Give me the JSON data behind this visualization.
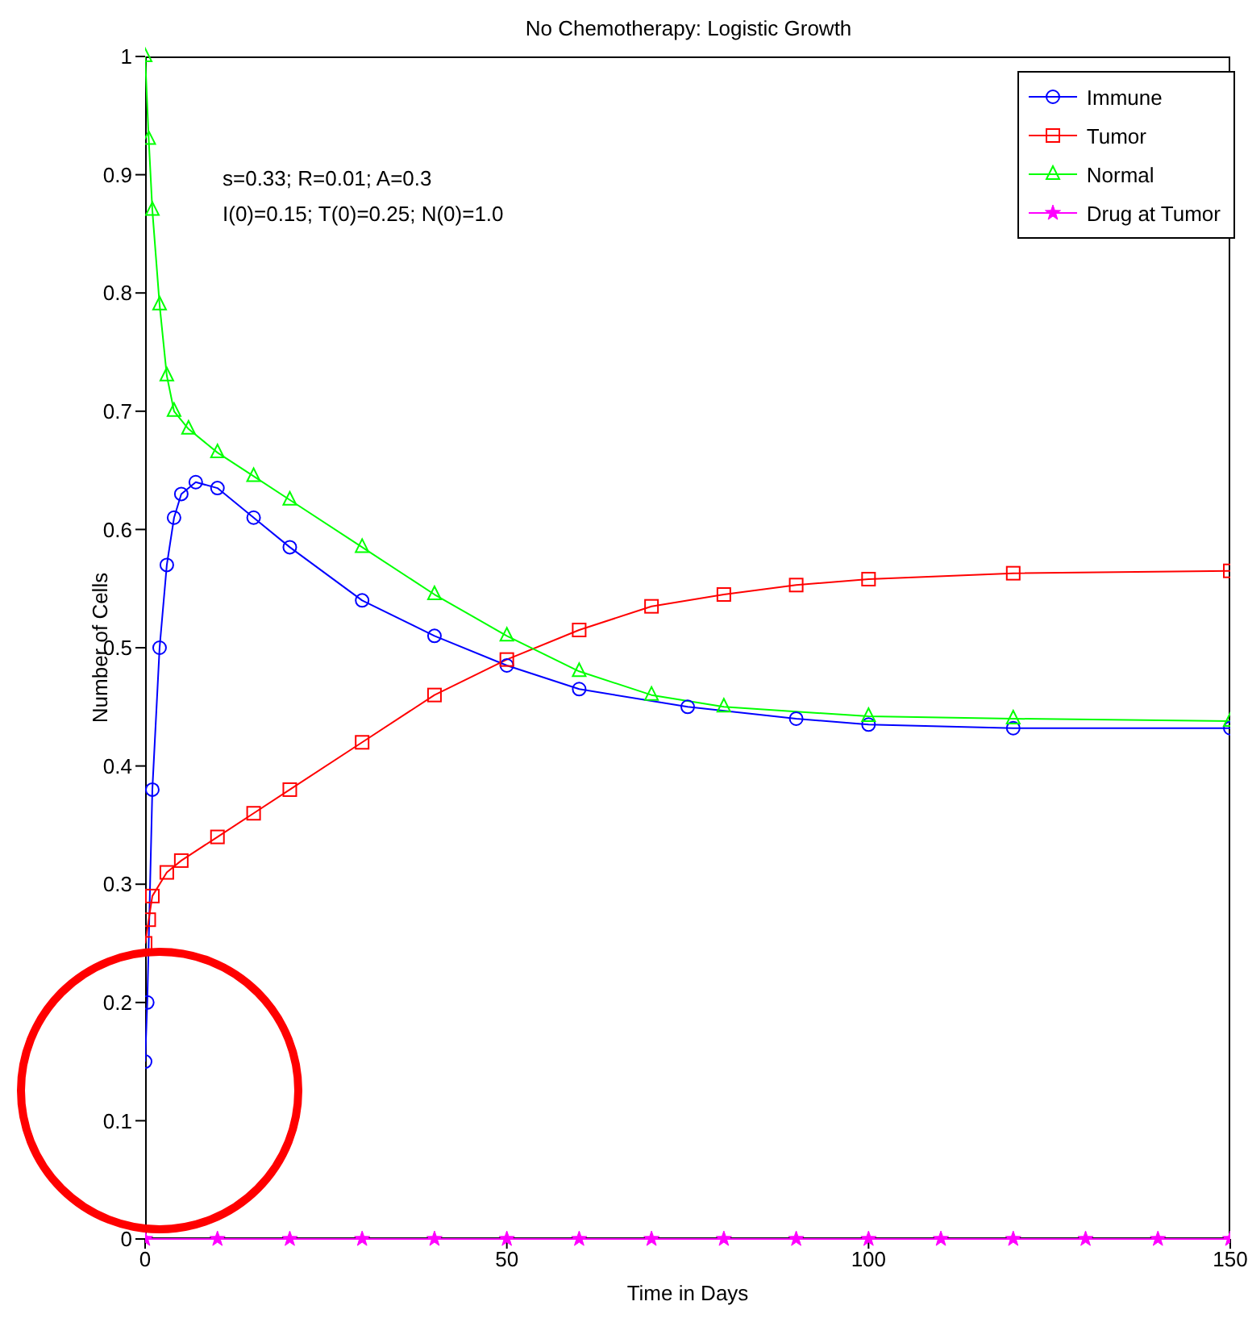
{
  "chart_data": {
    "type": "line",
    "title": "No Chemotherapy: Logistic Growth",
    "xlabel": "Time in Days",
    "ylabel": "Number of Cells",
    "xlim": [
      0,
      150
    ],
    "xticks": [
      0,
      50,
      100,
      150
    ],
    "ylim": [
      0,
      1
    ],
    "yticks": [
      0,
      0.1,
      0.2,
      0.3,
      0.4,
      0.5,
      0.6,
      0.7,
      0.8,
      0.9,
      1
    ],
    "legend": "top right",
    "line_style": "solid",
    "annotations": [
      "s=0.33; R=0.01; A=0.3",
      "I(0)=0.15; T(0)=0.25; N(0)=1.0"
    ],
    "series": [
      {
        "name": "Immune",
        "color": "#0000ff",
        "marker": "circle",
        "x": [
          0,
          0.3,
          1,
          2,
          3,
          4,
          5,
          7,
          10,
          15,
          20,
          30,
          40,
          50,
          60,
          75,
          90,
          100,
          120,
          150
        ],
        "values": [
          0.15,
          0.2,
          0.38,
          0.5,
          0.57,
          0.61,
          0.63,
          0.64,
          0.635,
          0.61,
          0.585,
          0.54,
          0.51,
          0.485,
          0.465,
          0.45,
          0.44,
          0.435,
          0.432,
          0.432
        ]
      },
      {
        "name": "Tumor",
        "color": "#ff0000",
        "marker": "square",
        "x": [
          0,
          0.5,
          1,
          3,
          5,
          10,
          15,
          20,
          30,
          40,
          50,
          60,
          70,
          80,
          90,
          100,
          120,
          150
        ],
        "values": [
          0.25,
          0.27,
          0.29,
          0.31,
          0.32,
          0.34,
          0.36,
          0.38,
          0.42,
          0.46,
          0.49,
          0.515,
          0.535,
          0.545,
          0.553,
          0.558,
          0.563,
          0.565
        ]
      },
      {
        "name": "Normal",
        "color": "#00ff00",
        "marker": "triangle",
        "x": [
          0,
          0.5,
          1,
          2,
          3,
          4,
          6,
          10,
          15,
          20,
          30,
          40,
          50,
          60,
          70,
          80,
          100,
          120,
          150
        ],
        "values": [
          1,
          0.93,
          0.87,
          0.79,
          0.73,
          0.7,
          0.685,
          0.665,
          0.645,
          0.625,
          0.585,
          0.545,
          0.51,
          0.48,
          0.46,
          0.45,
          0.442,
          0.44,
          0.438
        ]
      },
      {
        "name": "Drug at Tumor",
        "color": "#ff00ff",
        "marker": "star",
        "x": [
          0,
          10,
          20,
          30,
          40,
          50,
          60,
          70,
          80,
          90,
          100,
          110,
          120,
          130,
          140,
          150
        ],
        "values": [
          0,
          0,
          0,
          0,
          0,
          0,
          0,
          0,
          0,
          0,
          0,
          0,
          0,
          0,
          0,
          0
        ]
      }
    ]
  }
}
